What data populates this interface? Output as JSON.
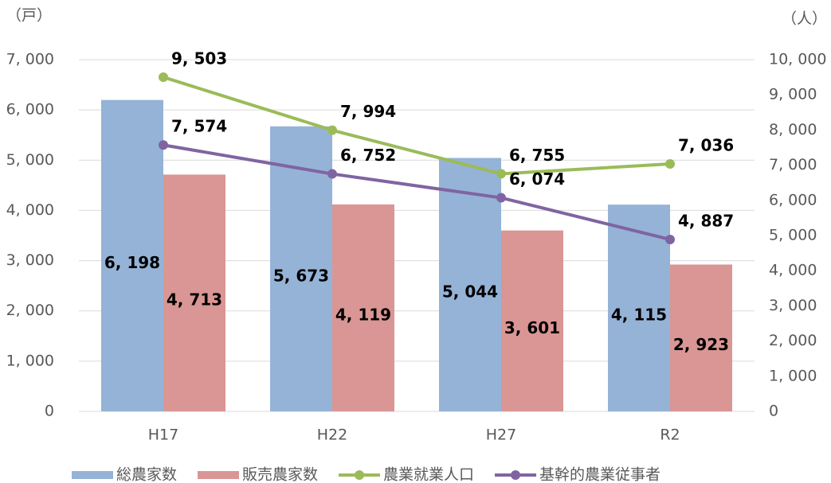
{
  "chart_data": {
    "type": "bar_line",
    "y_label": "（戸）",
    "y2_label": "（人）",
    "categories": [
      "H17",
      "H22",
      "H27",
      "R2"
    ],
    "series": [
      {
        "name": "総農家数",
        "type": "bar",
        "color": "#95b3d7",
        "values": [
          6198,
          5673,
          5044,
          4115
        ],
        "value_labels": [
          "6, 198",
          "5, 673",
          "5, 044",
          "4, 115"
        ]
      },
      {
        "name": "販売農家数",
        "type": "bar",
        "color": "#d99694",
        "values": [
          4713,
          4119,
          3601,
          2923
        ],
        "value_labels": [
          "4, 713",
          "4, 119",
          "3, 601",
          "2, 923"
        ]
      },
      {
        "name": "農業就業人口",
        "type": "line",
        "axis": "y2",
        "color": "#9bbb59",
        "values": [
          9503,
          7994,
          6755,
          7036
        ],
        "value_labels": [
          "9, 503",
          "7, 994",
          "6, 755",
          "7, 036"
        ]
      },
      {
        "name": "基幹的農業従事者",
        "type": "line",
        "axis": "y2",
        "color": "#8064a2",
        "values": [
          7574,
          6752,
          6074,
          4887
        ],
        "value_labels": [
          "7, 574",
          "6, 752",
          "6, 074",
          "4, 887"
        ]
      }
    ],
    "ylim": [
      0,
      7000
    ],
    "yticks": [
      0,
      {
        "value": 1000,
        "label": "1, 000"
      },
      {
        "value": 2000,
        "label": "2, 000"
      },
      {
        "value": 3000,
        "label": "3, 000"
      },
      {
        "value": 4000,
        "label": "4, 000"
      },
      {
        "value": 5000,
        "label": "5, 000"
      },
      {
        "value": 6000,
        "label": "6, 000"
      },
      {
        "value": 7000,
        "label": "7, 000"
      }
    ],
    "y2lim": [
      0,
      10000
    ],
    "y2ticks": [
      0,
      {
        "value": 1000,
        "label": "1, 000"
      },
      {
        "value": 2000,
        "label": "2, 000"
      },
      {
        "value": 3000,
        "label": "3, 000"
      },
      {
        "value": 4000,
        "label": "4, 000"
      },
      {
        "value": 5000,
        "label": "5, 000"
      },
      {
        "value": 6000,
        "label": "6, 000"
      },
      {
        "value": 7000,
        "label": "7, 000"
      },
      {
        "value": 8000,
        "label": "8, 000"
      },
      {
        "value": 9000,
        "label": "9, 000"
      },
      {
        "value": 10000,
        "label": "10, 000"
      }
    ],
    "grid": true,
    "legend": "bottom"
  }
}
